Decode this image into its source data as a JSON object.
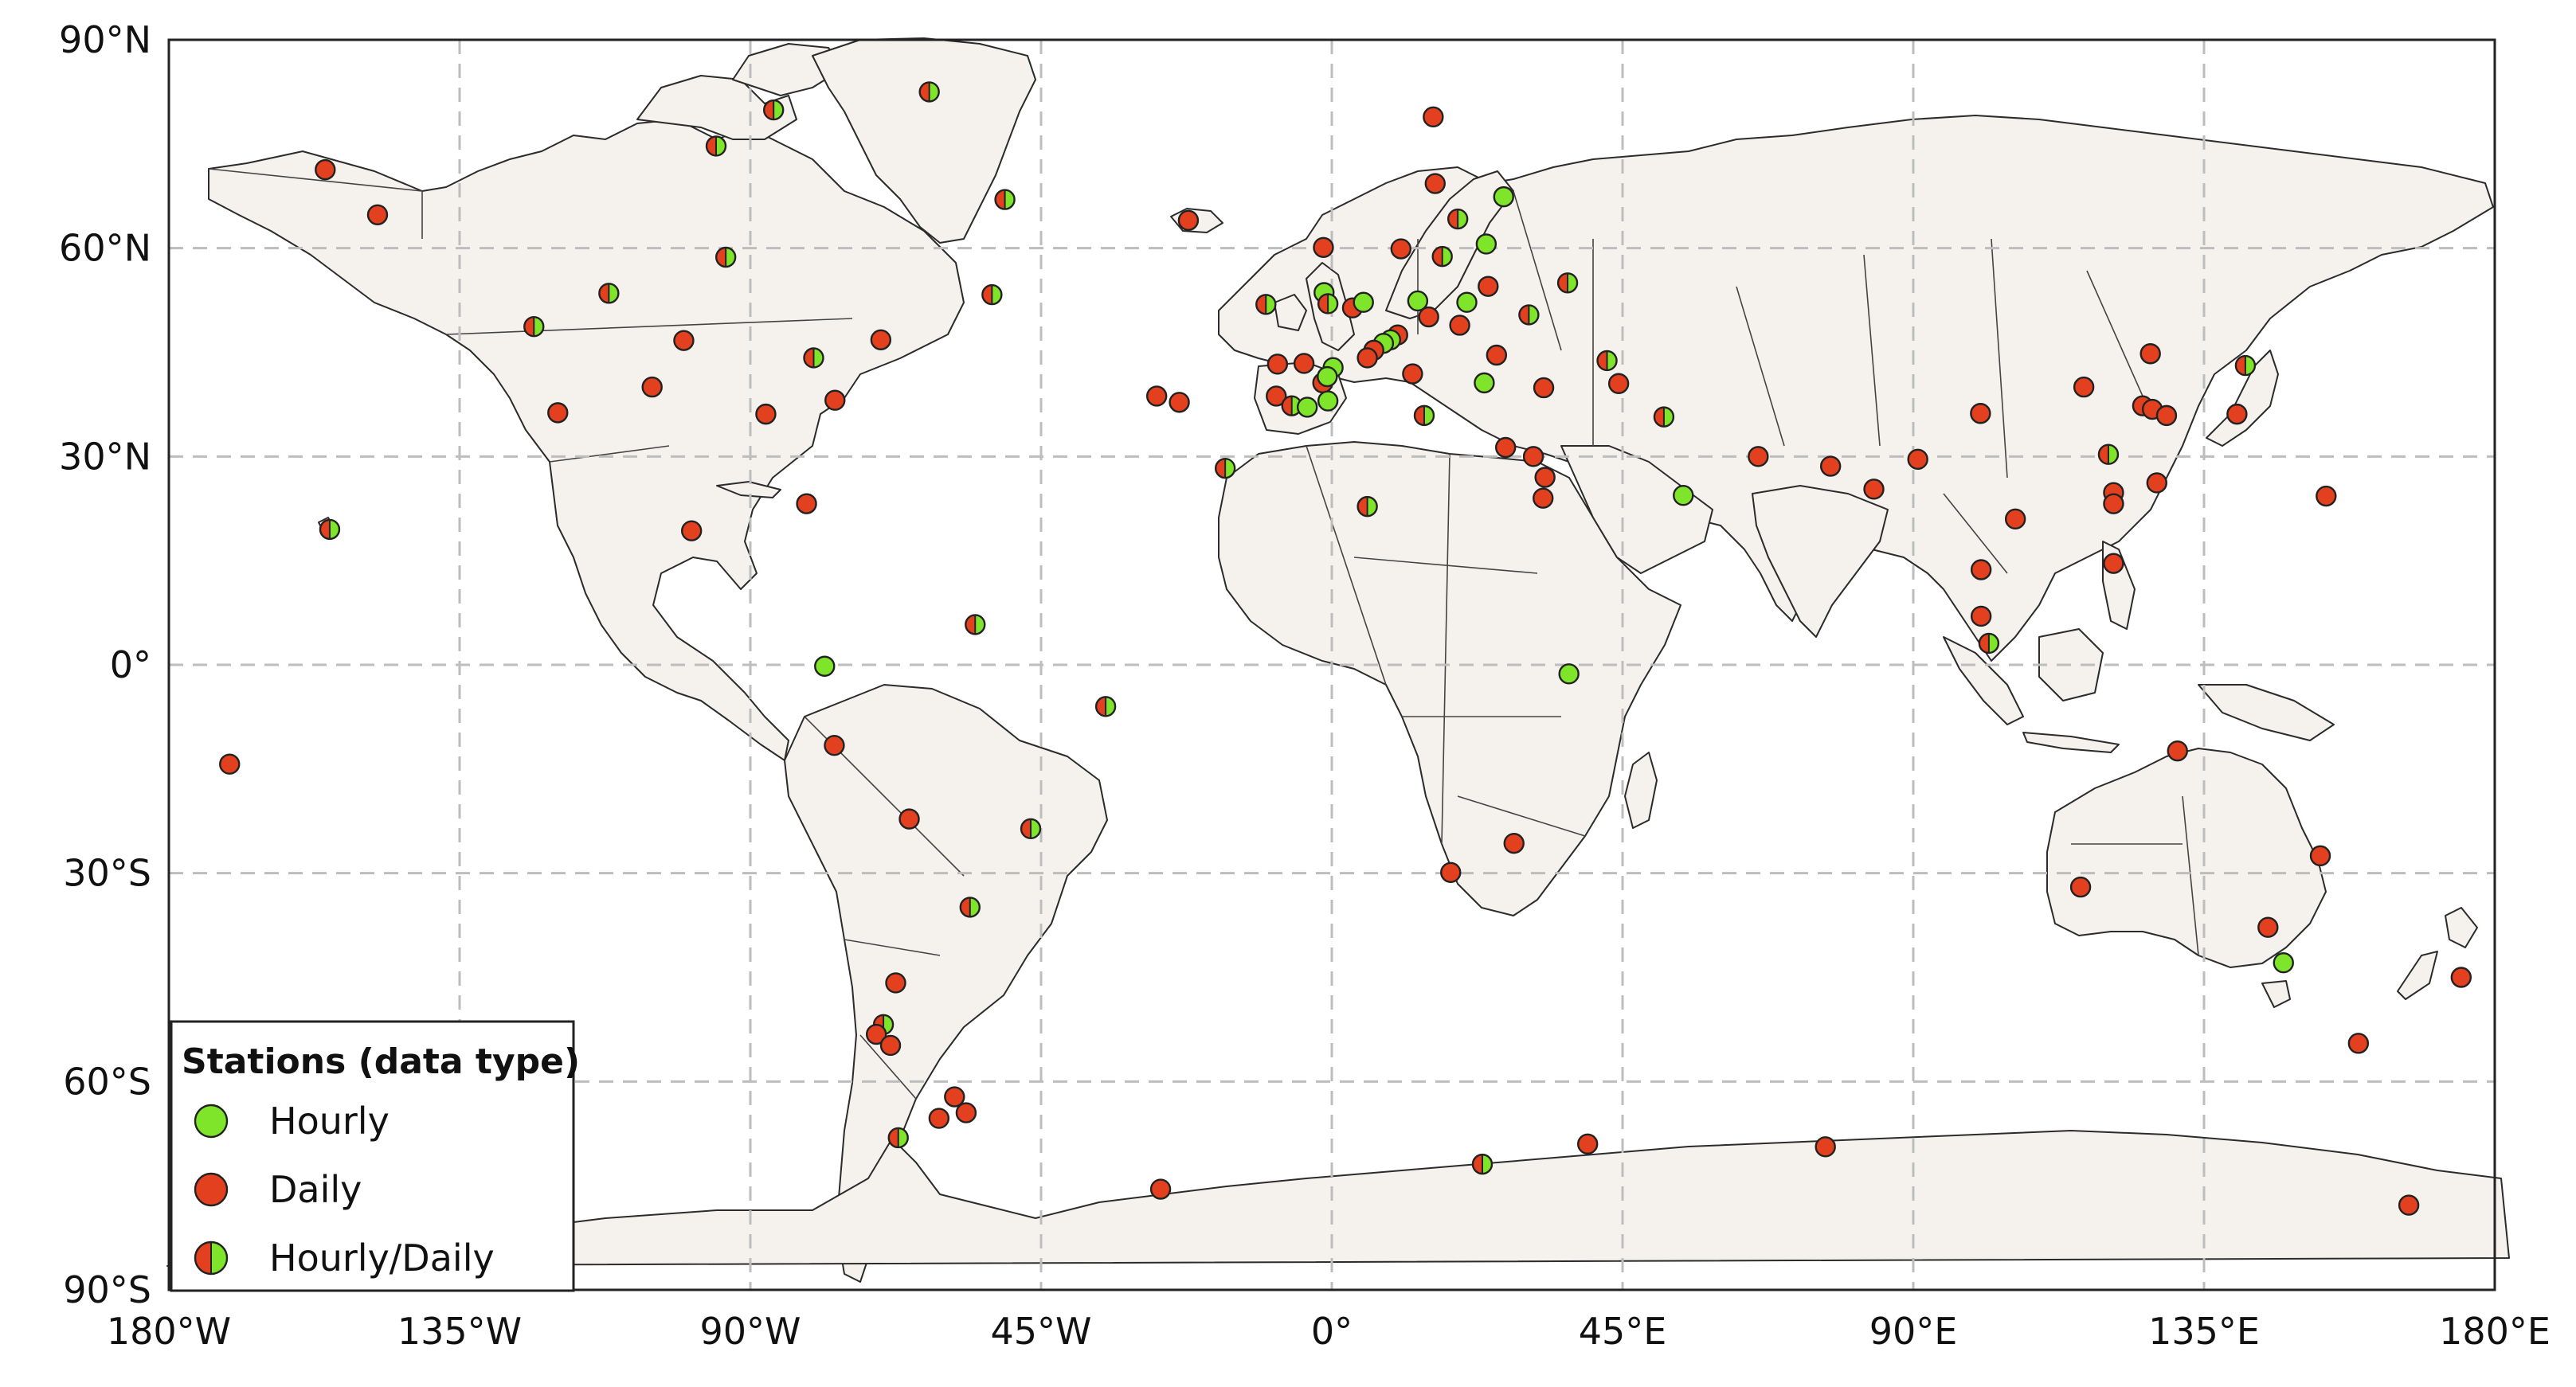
{
  "map": {
    "lon_range": [
      -180,
      180
    ],
    "lat_range": [
      -90,
      90
    ],
    "x_ticks": [
      {
        "value": -180,
        "label": "180°W"
      },
      {
        "value": -135,
        "label": "135°W"
      },
      {
        "value": -90,
        "label": "90°W"
      },
      {
        "value": -45,
        "label": "45°W"
      },
      {
        "value": 0,
        "label": "0°"
      },
      {
        "value": 45,
        "label": "45°E"
      },
      {
        "value": 90,
        "label": "90°E"
      },
      {
        "value": 135,
        "label": "135°E"
      },
      {
        "value": 180,
        "label": "180°E"
      }
    ],
    "y_ticks": [
      {
        "value": 90,
        "label": "90°N"
      },
      {
        "value": 60,
        "label": "60°N"
      },
      {
        "value": 30,
        "label": "30°N"
      },
      {
        "value": 0,
        "label": "0°"
      },
      {
        "value": -30,
        "label": "30°S"
      },
      {
        "value": -60,
        "label": "60°S"
      },
      {
        "value": -90,
        "label": "90°S"
      }
    ],
    "grid": true,
    "colors": {
      "hourly": "#7fe52b",
      "daily": "#e2401e",
      "land": "#f5f2ee",
      "grid": "#bdbdbd"
    }
  },
  "legend": {
    "title": "Stations (data type)",
    "placement": "bottom-left",
    "items": [
      {
        "type": "hourly",
        "label": "Hourly"
      },
      {
        "type": "daily",
        "label": "Daily"
      },
      {
        "type": "both",
        "label": "Hourly/Daily"
      }
    ]
  },
  "stations": [
    {
      "lon": -155.8,
      "lat": 71.3,
      "type": "daily"
    },
    {
      "lon": -147.7,
      "lat": 64.8,
      "type": "daily"
    },
    {
      "lon": -155.1,
      "lat": 19.5,
      "type": "both"
    },
    {
      "lon": -170.6,
      "lat": -14.3,
      "type": "daily"
    },
    {
      "lon": -123.5,
      "lat": 48.7,
      "type": "both"
    },
    {
      "lon": -111.9,
      "lat": 53.5,
      "type": "both"
    },
    {
      "lon": -95.3,
      "lat": 74.7,
      "type": "both"
    },
    {
      "lon": -86.4,
      "lat": 79.9,
      "type": "both"
    },
    {
      "lon": -62.3,
      "lat": 82.5,
      "type": "both"
    },
    {
      "lon": -93.8,
      "lat": 58.7,
      "type": "both"
    },
    {
      "lon": -50.6,
      "lat": 67.0,
      "type": "both"
    },
    {
      "lon": -52.6,
      "lat": 53.3,
      "type": "both"
    },
    {
      "lon": -100.3,
      "lat": 46.7,
      "type": "daily"
    },
    {
      "lon": -105.2,
      "lat": 40.0,
      "type": "daily"
    },
    {
      "lon": -119.8,
      "lat": 36.3,
      "type": "daily"
    },
    {
      "lon": -87.6,
      "lat": 36.1,
      "type": "daily"
    },
    {
      "lon": -80.2,
      "lat": 44.2,
      "type": "both"
    },
    {
      "lon": -76.9,
      "lat": 38.1,
      "type": "daily"
    },
    {
      "lon": -69.8,
      "lat": 46.8,
      "type": "daily"
    },
    {
      "lon": -99.1,
      "lat": 19.3,
      "type": "daily"
    },
    {
      "lon": -81.3,
      "lat": 23.2,
      "type": "daily"
    },
    {
      "lon": -78.5,
      "lat": -0.2,
      "type": "hourly"
    },
    {
      "lon": -77.0,
      "lat": -11.6,
      "type": "daily"
    },
    {
      "lon": -55.2,
      "lat": 5.8,
      "type": "both"
    },
    {
      "lon": -35.0,
      "lat": -6.0,
      "type": "both"
    },
    {
      "lon": -65.4,
      "lat": -22.2,
      "type": "daily"
    },
    {
      "lon": -46.6,
      "lat": -23.6,
      "type": "both"
    },
    {
      "lon": -56.0,
      "lat": -34.9,
      "type": "both"
    },
    {
      "lon": -67.5,
      "lat": -45.8,
      "type": "daily"
    },
    {
      "lon": -69.4,
      "lat": -51.8,
      "type": "both"
    },
    {
      "lon": -70.5,
      "lat": -53.2,
      "type": "daily"
    },
    {
      "lon": -68.3,
      "lat": -54.8,
      "type": "daily"
    },
    {
      "lon": -58.4,
      "lat": -62.2,
      "type": "daily"
    },
    {
      "lon": -56.6,
      "lat": -64.5,
      "type": "daily"
    },
    {
      "lon": -60.8,
      "lat": -65.3,
      "type": "daily"
    },
    {
      "lon": -67.1,
      "lat": -68.1,
      "type": "both"
    },
    {
      "lon": -27.1,
      "lat": 38.7,
      "type": "daily"
    },
    {
      "lon": -23.6,
      "lat": 37.8,
      "type": "daily"
    },
    {
      "lon": -16.5,
      "lat": 28.3,
      "type": "both"
    },
    {
      "lon": -22.2,
      "lat": 64.0,
      "type": "daily"
    },
    {
      "lon": -26.5,
      "lat": -75.5,
      "type": "daily"
    },
    {
      "lon": 15.7,
      "lat": 78.9,
      "type": "daily"
    },
    {
      "lon": 16.0,
      "lat": 69.3,
      "type": "daily"
    },
    {
      "lon": 26.6,
      "lat": 67.4,
      "type": "hourly"
    },
    {
      "lon": 19.5,
      "lat": 64.2,
      "type": "both"
    },
    {
      "lon": 23.9,
      "lat": 60.6,
      "type": "hourly"
    },
    {
      "lon": 10.7,
      "lat": 59.9,
      "type": "daily"
    },
    {
      "lon": 17.1,
      "lat": 58.8,
      "type": "both"
    },
    {
      "lon": -1.3,
      "lat": 60.1,
      "type": "daily"
    },
    {
      "lon": 36.5,
      "lat": 55.0,
      "type": "both"
    },
    {
      "lon": -10.2,
      "lat": 51.9,
      "type": "both"
    },
    {
      "lon": -1.2,
      "lat": 53.6,
      "type": "hourly"
    },
    {
      "lon": -0.6,
      "lat": 52.0,
      "type": "both"
    },
    {
      "lon": 3.2,
      "lat": 51.4,
      "type": "daily"
    },
    {
      "lon": 4.9,
      "lat": 52.2,
      "type": "hourly"
    },
    {
      "lon": 13.3,
      "lat": 52.4,
      "type": "hourly"
    },
    {
      "lon": 20.9,
      "lat": 52.2,
      "type": "hourly"
    },
    {
      "lon": 24.2,
      "lat": 54.5,
      "type": "daily"
    },
    {
      "lon": 15.0,
      "lat": 50.1,
      "type": "daily"
    },
    {
      "lon": 19.8,
      "lat": 48.9,
      "type": "daily"
    },
    {
      "lon": 30.5,
      "lat": 50.4,
      "type": "both"
    },
    {
      "lon": 10.2,
      "lat": 47.5,
      "type": "daily"
    },
    {
      "lon": 9.1,
      "lat": 46.8,
      "type": "hourly"
    },
    {
      "lon": 8.0,
      "lat": 46.3,
      "type": "hourly"
    },
    {
      "lon": 6.5,
      "lat": 45.3,
      "type": "daily"
    },
    {
      "lon": 5.5,
      "lat": 44.2,
      "type": "daily"
    },
    {
      "lon": 0.2,
      "lat": 42.8,
      "type": "hourly"
    },
    {
      "lon": -4.3,
      "lat": 43.4,
      "type": "daily"
    },
    {
      "lon": -8.4,
      "lat": 43.3,
      "type": "daily"
    },
    {
      "lon": -1.4,
      "lat": 40.6,
      "type": "daily"
    },
    {
      "lon": -0.7,
      "lat": 41.5,
      "type": "hourly"
    },
    {
      "lon": -8.6,
      "lat": 38.7,
      "type": "daily"
    },
    {
      "lon": -6.2,
      "lat": 37.3,
      "type": "both"
    },
    {
      "lon": -3.8,
      "lat": 37.1,
      "type": "hourly"
    },
    {
      "lon": -0.6,
      "lat": 38.0,
      "type": "hourly"
    },
    {
      "lon": 12.5,
      "lat": 41.9,
      "type": "daily"
    },
    {
      "lon": 23.6,
      "lat": 40.6,
      "type": "hourly"
    },
    {
      "lon": 25.5,
      "lat": 44.6,
      "type": "daily"
    },
    {
      "lon": 32.8,
      "lat": 39.9,
      "type": "daily"
    },
    {
      "lon": 42.6,
      "lat": 43.8,
      "type": "both"
    },
    {
      "lon": 44.4,
      "lat": 40.5,
      "type": "daily"
    },
    {
      "lon": 14.3,
      "lat": 35.9,
      "type": "both"
    },
    {
      "lon": 26.9,
      "lat": 31.3,
      "type": "daily"
    },
    {
      "lon": 31.2,
      "lat": 30.0,
      "type": "daily"
    },
    {
      "lon": 33.0,
      "lat": 27.0,
      "type": "daily"
    },
    {
      "lon": 32.7,
      "lat": 24.0,
      "type": "daily"
    },
    {
      "lon": 51.4,
      "lat": 35.7,
      "type": "both"
    },
    {
      "lon": 54.4,
      "lat": 24.4,
      "type": "hourly"
    },
    {
      "lon": 5.5,
      "lat": 22.8,
      "type": "both"
    },
    {
      "lon": 36.7,
      "lat": -1.3,
      "type": "hourly"
    },
    {
      "lon": 18.4,
      "lat": -29.9,
      "type": "daily"
    },
    {
      "lon": 28.2,
      "lat": -25.7,
      "type": "daily"
    },
    {
      "lon": 66.0,
      "lat": 30.0,
      "type": "daily"
    },
    {
      "lon": 77.2,
      "lat": 28.6,
      "type": "daily"
    },
    {
      "lon": 83.9,
      "lat": 25.3,
      "type": "daily"
    },
    {
      "lon": 90.7,
      "lat": 29.6,
      "type": "daily"
    },
    {
      "lon": 100.4,
      "lat": 36.2,
      "type": "daily"
    },
    {
      "lon": 116.4,
      "lat": 40.0,
      "type": "daily"
    },
    {
      "lon": 126.7,
      "lat": 44.8,
      "type": "daily"
    },
    {
      "lon": 125.5,
      "lat": 37.3,
      "type": "daily"
    },
    {
      "lon": 127.0,
      "lat": 36.8,
      "type": "daily"
    },
    {
      "lon": 129.2,
      "lat": 35.9,
      "type": "daily"
    },
    {
      "lon": 141.4,
      "lat": 43.1,
      "type": "both"
    },
    {
      "lon": 140.1,
      "lat": 36.1,
      "type": "daily"
    },
    {
      "lon": 127.7,
      "lat": 26.2,
      "type": "daily"
    },
    {
      "lon": 120.2,
      "lat": 30.3,
      "type": "both"
    },
    {
      "lon": 121.0,
      "lat": 24.8,
      "type": "daily"
    },
    {
      "lon": 121.0,
      "lat": 23.2,
      "type": "daily"
    },
    {
      "lon": 121.0,
      "lat": 14.6,
      "type": "daily"
    },
    {
      "lon": 105.8,
      "lat": 21.0,
      "type": "daily"
    },
    {
      "lon": 100.5,
      "lat": 13.7,
      "type": "daily"
    },
    {
      "lon": 100.5,
      "lat": 7.0,
      "type": "daily"
    },
    {
      "lon": 101.7,
      "lat": 3.1,
      "type": "both"
    },
    {
      "lon": 153.9,
      "lat": 24.3,
      "type": "daily"
    },
    {
      "lon": 130.9,
      "lat": -12.4,
      "type": "daily"
    },
    {
      "lon": 115.9,
      "lat": -32.0,
      "type": "daily"
    },
    {
      "lon": 153.0,
      "lat": -27.5,
      "type": "daily"
    },
    {
      "lon": 144.9,
      "lat": -37.8,
      "type": "daily"
    },
    {
      "lon": 147.3,
      "lat": -42.9,
      "type": "hourly"
    },
    {
      "lon": 174.8,
      "lat": -45.0,
      "type": "daily"
    },
    {
      "lon": 158.9,
      "lat": -54.5,
      "type": "daily"
    },
    {
      "lon": 166.7,
      "lat": -77.8,
      "type": "daily"
    },
    {
      "lon": 23.3,
      "lat": -71.9,
      "type": "both"
    },
    {
      "lon": 39.6,
      "lat": -69.0,
      "type": "daily"
    },
    {
      "lon": 76.4,
      "lat": -69.4,
      "type": "daily"
    }
  ]
}
